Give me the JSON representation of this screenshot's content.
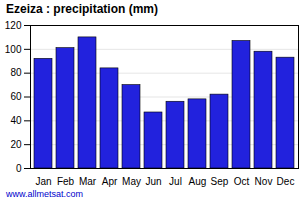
{
  "chart_data": {
    "type": "bar",
    "title": "Ezeiza : precipitation (mm)",
    "categories": [
      "Jan",
      "Feb",
      "Mar",
      "Apr",
      "May",
      "Jun",
      "Jul",
      "Aug",
      "Sep",
      "Oct",
      "Nov",
      "Dec"
    ],
    "values": [
      92,
      101,
      110,
      84,
      70,
      47,
      56,
      58,
      62,
      107,
      98,
      93
    ],
    "color": "#2222dd",
    "ylim": [
      0,
      120
    ],
    "yticks": [
      0,
      20,
      40,
      60,
      80,
      100,
      120
    ],
    "grid": true,
    "annotations": [
      "www.allmetsat.com"
    ]
  }
}
